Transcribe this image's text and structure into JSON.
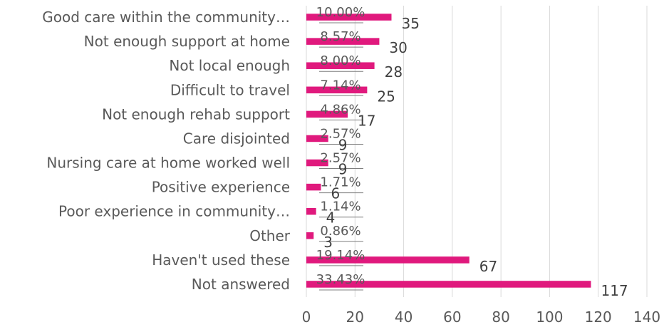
{
  "chart_data": {
    "type": "bar",
    "orientation": "horizontal",
    "categories": [
      "Good care within the community…",
      "Not enough support at home",
      "Not local enough",
      "Difficult to travel",
      "Not enough rehab support",
      "Care disjointed",
      "Nursing care at home worked well",
      "Positive experience",
      "Poor experience in community…",
      "Other",
      "Haven't used these",
      "Not answered"
    ],
    "values": [
      35,
      30,
      28,
      25,
      17,
      9,
      9,
      6,
      4,
      3,
      67,
      117
    ],
    "value_labels": [
      "35",
      "30",
      "28",
      "25",
      "17",
      "9",
      "9",
      "6",
      "4",
      "3",
      "67",
      "117"
    ],
    "percent_labels": [
      "10.00%",
      "8.57%",
      "8.00%",
      "7.14%",
      "4.86%",
      "2.57%",
      "2.57%",
      "1.71%",
      "1.14%",
      "0.86%",
      "19.14%",
      "33.43%"
    ],
    "xlim": [
      0,
      140
    ],
    "xticks": [
      "0",
      "20",
      "40",
      "60",
      "80",
      "100",
      "120",
      "140"
    ],
    "grid": "vertical",
    "legend": "none",
    "colors": {
      "bar": "#e0197d",
      "grid": "#d9d9d9",
      "text": "#595959"
    }
  }
}
